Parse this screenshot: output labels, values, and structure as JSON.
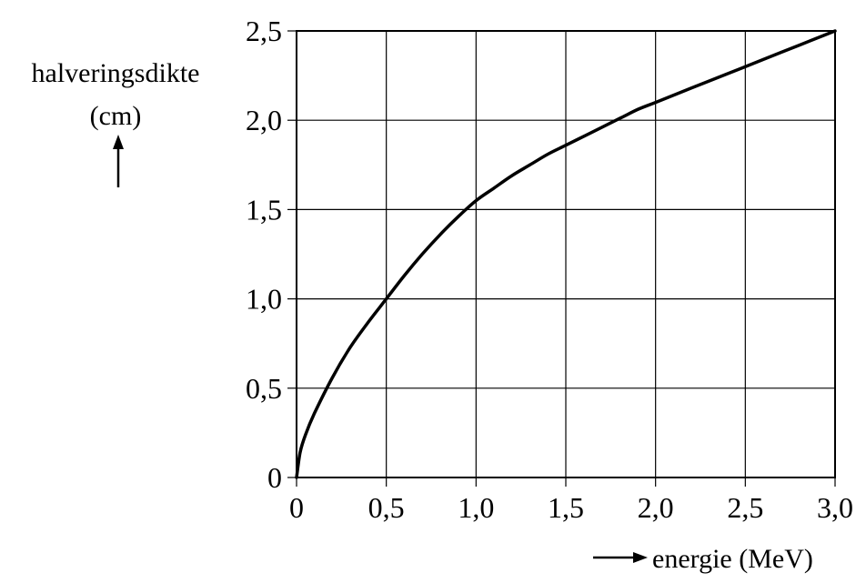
{
  "chart_data": {
    "type": "line",
    "title": "",
    "ylabel": "halveringsdikte",
    "ylabel_unit": "(cm)",
    "xlabel": "energie (MeV)",
    "xlim": [
      0,
      3.0
    ],
    "ylim": [
      0,
      2.5
    ],
    "grid": true,
    "x_ticks": [
      0,
      0.5,
      1.0,
      1.5,
      2.0,
      2.5,
      3.0
    ],
    "x_tick_labels": [
      "0",
      "0,5",
      "1,0",
      "1,5",
      "2,0",
      "2,5",
      "3,0"
    ],
    "y_ticks": [
      0,
      0.5,
      1.0,
      1.5,
      2.0,
      2.5
    ],
    "y_tick_labels": [
      "0",
      "0,5",
      "1,0",
      "1,5",
      "2,0",
      "2,5"
    ],
    "series": [
      {
        "x": [
          0,
          0.02,
          0.05,
          0.1,
          0.2,
          0.3,
          0.4,
          0.5,
          0.6,
          0.7,
          0.8,
          0.9,
          1.0,
          1.1,
          1.2,
          1.3,
          1.4,
          1.5,
          1.6,
          1.7,
          1.8,
          1.9,
          2.0,
          2.2,
          2.4,
          2.6,
          2.8,
          3.0
        ],
        "y": [
          0,
          0.14,
          0.24,
          0.36,
          0.56,
          0.73,
          0.87,
          1.0,
          1.13,
          1.25,
          1.36,
          1.46,
          1.55,
          1.62,
          1.69,
          1.75,
          1.81,
          1.86,
          1.91,
          1.96,
          2.01,
          2.06,
          2.1,
          2.18,
          2.26,
          2.34,
          2.42,
          2.5
        ],
        "color": "#000000"
      }
    ]
  }
}
